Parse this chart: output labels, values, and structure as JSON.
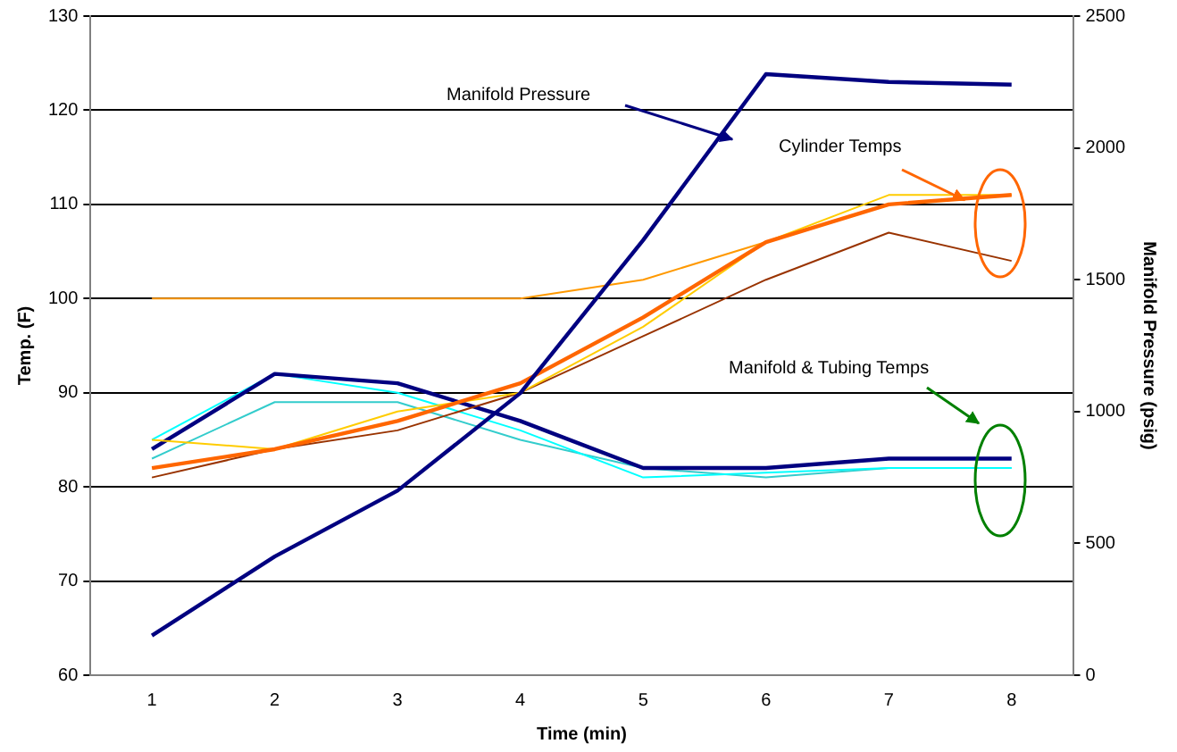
{
  "chart_data": {
    "type": "line",
    "xlabel": "Time (min)",
    "ylabel": "Temp. (F)",
    "y2label": "Manifold Pressure (psig)",
    "categories": [
      "1",
      "2",
      "3",
      "4",
      "5",
      "6",
      "7",
      "8"
    ],
    "series": [
      {
        "color": "#33cccc",
        "values": [
          83,
          89,
          89,
          85,
          82,
          81,
          82,
          82
        ]
      },
      {
        "color": "#00ffff",
        "values": [
          85,
          92,
          90,
          86,
          81,
          81.5,
          82,
          82
        ]
      },
      {
        "color": "#000080",
        "values": [
          84,
          92,
          91,
          87,
          82,
          82,
          83,
          83
        ]
      },
      {
        "color": "#993300",
        "values": [
          81,
          84,
          86,
          90,
          96,
          102,
          107,
          104
        ]
      },
      {
        "color": "#ffcc00",
        "values": [
          85,
          84,
          88,
          90,
          97,
          106,
          111,
          111
        ]
      },
      {
        "color": "#ff9900",
        "values": [
          100,
          100,
          100,
          100,
          102,
          106,
          110,
          111
        ]
      },
      {
        "color": "#ff6600",
        "values": [
          82,
          84,
          87,
          91,
          98,
          106,
          110,
          111
        ]
      },
      {
        "color": "#000080",
        "axis": "y2",
        "values": [
          150,
          450,
          700,
          1070,
          1650,
          2280,
          2250,
          2240
        ]
      }
    ],
    "ylim": [
      60,
      130
    ],
    "yticks": [
      60,
      70,
      80,
      90,
      100,
      110,
      120,
      130
    ],
    "y2lim": [
      0,
      2500
    ],
    "y2ticks": [
      0,
      500,
      1000,
      1500,
      2000,
      2500
    ],
    "grid": "y",
    "marker": "none",
    "line_style": "solid",
    "legend": false,
    "annotations": [
      "Manifold Pressure",
      "Cylinder Temps",
      "Manifold & Tubing Temps"
    ]
  }
}
